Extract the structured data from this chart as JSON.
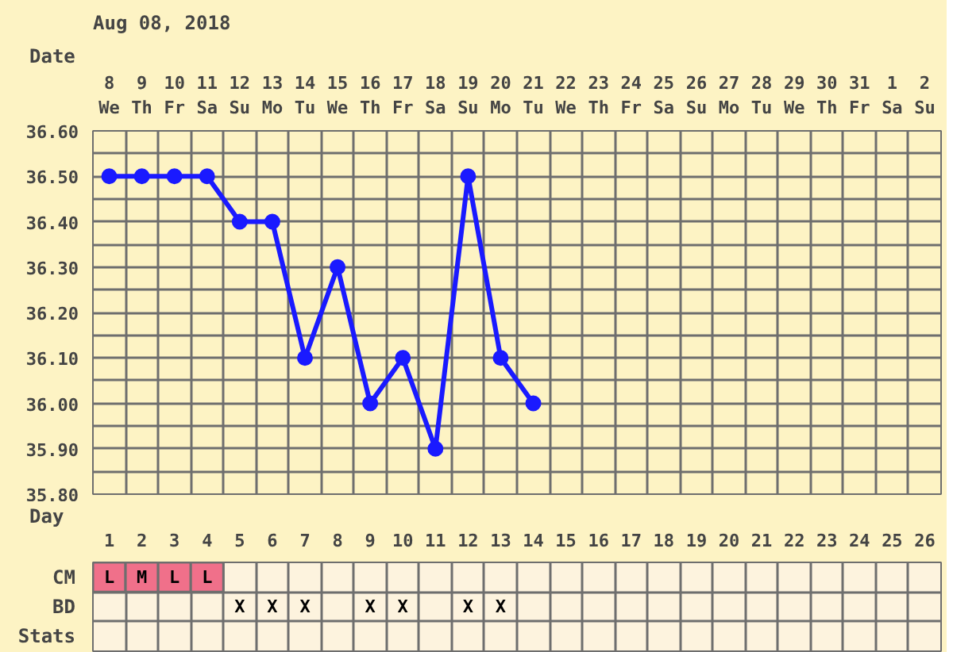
{
  "chart_data": [
    {
      "type": "line",
      "title": "Aug 08, 2018",
      "xlabel": "Date",
      "categories": [
        "8\nWe",
        "9\nTh",
        "10\nFr",
        "11\nSa",
        "12\nSu",
        "13\nMo",
        "14\nTu",
        "15\nWe",
        "16\nTh",
        "17\nFr",
        "18\nSa",
        "19\nSu",
        "20\nMo",
        "21\nTu",
        "22\nWe",
        "23\nTh",
        "24\nFr",
        "25\nSa",
        "26\nSu",
        "27\nMo",
        "28\nTu",
        "29\nWe",
        "30\nTh",
        "31\nFr",
        "1\nSa",
        "2\nSu"
      ],
      "series": [
        {
          "color": "#1a1aff",
          "values": [
            36.5,
            36.5,
            36.5,
            36.5,
            36.4,
            36.4,
            36.1,
            36.3,
            36.0,
            36.1,
            35.9,
            36.5,
            36.1,
            36.0,
            null,
            null,
            null,
            null,
            null,
            null,
            null,
            null,
            null,
            null,
            null,
            null
          ]
        }
      ],
      "marker": "circle",
      "ylim": [
        35.8,
        36.6
      ],
      "yticks": [
        {
          "value": 35.8,
          "label": "35.80"
        },
        {
          "value": 35.85,
          "label": null
        },
        {
          "value": 35.9,
          "label": "35.90"
        },
        {
          "value": 35.95,
          "label": null
        },
        {
          "value": 36.0,
          "label": "36.00"
        },
        {
          "value": 36.05,
          "label": null
        },
        {
          "value": 36.1,
          "label": "36.10"
        },
        {
          "value": 36.15,
          "label": null
        },
        {
          "value": 36.2,
          "label": "36.20"
        },
        {
          "value": 36.25,
          "label": null
        },
        {
          "value": 36.3,
          "label": "36.30"
        },
        {
          "value": 36.35,
          "label": null
        },
        {
          "value": 36.4,
          "label": "36.40"
        },
        {
          "value": 36.45,
          "label": null
        },
        {
          "value": 36.5,
          "label": "36.50"
        },
        {
          "value": 36.55,
          "label": null
        },
        {
          "value": 36.6,
          "label": "36.60"
        }
      ],
      "x2label": "Day",
      "x2lim": [
        0.5,
        26.5
      ],
      "x2ticks": [
        1,
        2,
        3,
        4,
        5,
        6,
        7,
        8,
        9,
        10,
        11,
        12,
        13,
        14,
        15,
        16,
        17,
        18,
        19,
        20,
        21,
        22,
        23,
        24,
        25,
        26
      ],
      "grid": true
    },
    {
      "type": "other",
      "y_categories": [
        "CM",
        "BD",
        "Stats"
      ],
      "cell_labels": [
        [
          "L",
          "M",
          "L",
          "L",
          null,
          null,
          null,
          null,
          null,
          null,
          null,
          null,
          null,
          null,
          null,
          null,
          null,
          null,
          null,
          null,
          null,
          null,
          null,
          null,
          null,
          null
        ],
        [
          null,
          null,
          null,
          null,
          "X",
          "X",
          "X",
          null,
          "X",
          "X",
          null,
          "X",
          "X",
          null,
          null,
          null,
          null,
          null,
          null,
          null,
          null,
          null,
          null,
          null,
          null,
          null
        ],
        [
          null,
          null,
          null,
          null,
          null,
          null,
          null,
          null,
          null,
          null,
          null,
          null,
          null,
          null,
          null,
          null,
          null,
          null,
          null,
          null,
          null,
          null,
          null,
          null,
          null,
          null
        ]
      ],
      "colors": [
        [
          "#f0708a",
          "#f0708a",
          "#f0708a",
          "#f0708a",
          null,
          null,
          null,
          null,
          null,
          null,
          null,
          null,
          null,
          null,
          null,
          null,
          null,
          null,
          null,
          null,
          null,
          null,
          null,
          null,
          null,
          null
        ],
        [
          null,
          null,
          null,
          null,
          null,
          null,
          null,
          null,
          null,
          null,
          null,
          null,
          null,
          null,
          null,
          null,
          null,
          null,
          null,
          null,
          null,
          null,
          null,
          null,
          null,
          null
        ],
        [
          null,
          null,
          null,
          null,
          null,
          null,
          null,
          null,
          null,
          null,
          null,
          null,
          null,
          null,
          null,
          null,
          null,
          null,
          null,
          null,
          null,
          null,
          null,
          null,
          null,
          null
        ]
      ]
    }
  ]
}
